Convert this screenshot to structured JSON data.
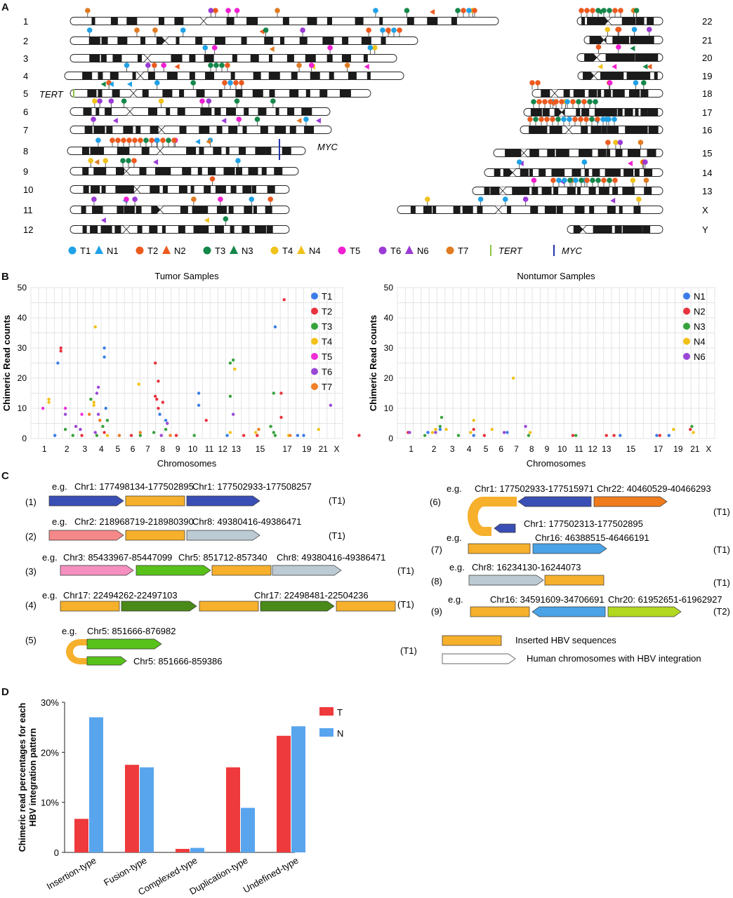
{
  "panels": {
    "a": "A",
    "b": "B",
    "c": "C",
    "d": "D"
  },
  "karyogram": {
    "left_chromosomes": [
      "1",
      "2",
      "3",
      "4",
      "5",
      "6",
      "7",
      "8",
      "9",
      "10",
      "11",
      "12"
    ],
    "right_chromosomes": [
      "22",
      "21",
      "20",
      "19",
      "18",
      "17",
      "16",
      "15",
      "14",
      "13",
      "X",
      "Y"
    ],
    "gene_labels": {
      "tert": "TERT",
      "myc": "MYC"
    },
    "legend": [
      {
        "kind": "pin",
        "color": "#1ea1e6",
        "label": "T1"
      },
      {
        "kind": "tri",
        "color": "#1ea1e6",
        "label": "N1"
      },
      {
        "kind": "pin",
        "color": "#ec5a1e",
        "label": "T2"
      },
      {
        "kind": "tri",
        "color": "#ec5a1e",
        "label": "N2"
      },
      {
        "kind": "pin",
        "color": "#14874a",
        "label": "T3"
      },
      {
        "kind": "tri",
        "color": "#14874a",
        "label": "N3"
      },
      {
        "kind": "pin",
        "color": "#f0c21c",
        "label": "T4"
      },
      {
        "kind": "tri",
        "color": "#f0c21c",
        "label": "N4"
      },
      {
        "kind": "pin",
        "color": "#f01fd2",
        "label": "T5"
      },
      {
        "kind": "pin",
        "color": "#9b3ad6",
        "label": "T6"
      },
      {
        "kind": "tri",
        "color": "#9b3ad6",
        "label": "N6"
      },
      {
        "kind": "pin",
        "color": "#e07b22",
        "label": "T7"
      },
      {
        "kind": "line",
        "color": "#8cc63f",
        "label": "TERT"
      },
      {
        "kind": "line",
        "color": "#2233aa",
        "label": "MYC"
      }
    ]
  },
  "chart_data": [
    {
      "type": "scatter",
      "title": "Tumor Samples",
      "xlabel": "Chromosomes",
      "ylabel": "Chimeric Read counts",
      "ylim": [
        0,
        50
      ],
      "yticks": [
        0,
        10,
        20,
        30,
        40,
        50
      ],
      "xticks": [
        "1",
        "2",
        "3",
        "4",
        "5",
        "6",
        "7",
        "8",
        "9",
        "10",
        "11",
        "12",
        "13",
        "15",
        "17",
        "19",
        "21",
        "X"
      ],
      "grid": true,
      "legend_position": "top-right",
      "series": [
        {
          "name": "T1",
          "color": "#3a7de8",
          "points": [
            [
              1.4,
              25
            ],
            [
              4.5,
              30
            ],
            [
              4.5,
              27
            ],
            [
              4.6,
              10
            ],
            [
              8.2,
              8
            ],
            [
              8.6,
              6
            ],
            [
              10.8,
              15
            ],
            [
              10.8,
              11
            ],
            [
              15.9,
              37
            ],
            [
              17.4,
              1
            ],
            [
              1.2,
              1
            ],
            [
              5.5,
              1
            ],
            [
              12.7,
              1
            ],
            [
              17.8,
              1
            ]
          ]
        },
        {
          "name": "T2",
          "color": "#e8333f",
          "points": [
            [
              1.6,
              30
            ],
            [
              1.6,
              29
            ],
            [
              7.9,
              25
            ],
            [
              8.1,
              19
            ],
            [
              7.9,
              14
            ],
            [
              8.0,
              13
            ],
            [
              8.4,
              12
            ],
            [
              8.1,
              10
            ],
            [
              11.3,
              6
            ],
            [
              16.5,
              46
            ],
            [
              16.3,
              15
            ],
            [
              16.3,
              7
            ],
            [
              3.0,
              1
            ],
            [
              4.5,
              2
            ],
            [
              6.3,
              1
            ],
            [
              9.3,
              1
            ],
            [
              13.8,
              1
            ],
            [
              14.7,
              1
            ],
            [
              21.5,
              1
            ]
          ]
        },
        {
          "name": "T3",
          "color": "#37a33c",
          "points": [
            [
              13.1,
              26
            ],
            [
              12.9,
              25
            ],
            [
              12.9,
              14
            ],
            [
              3.6,
              13
            ],
            [
              4.7,
              6
            ],
            [
              4.4,
              4
            ],
            [
              7.8,
              2
            ],
            [
              8.6,
              3
            ],
            [
              15.8,
              15
            ],
            [
              15.6,
              4
            ],
            [
              15.8,
              2
            ],
            [
              1.9,
              3
            ],
            [
              2.4,
              1
            ],
            [
              4.0,
              1
            ],
            [
              6.9,
              1
            ],
            [
              10.5,
              1
            ],
            [
              15.9,
              1
            ]
          ]
        },
        {
          "name": "T4",
          "color": "#f2c117",
          "points": [
            [
              3.9,
              37
            ],
            [
              0.8,
              13
            ],
            [
              0.8,
              12
            ],
            [
              3.8,
              12
            ],
            [
              3.8,
              11
            ],
            [
              6.8,
              18
            ],
            [
              13.2,
              23
            ],
            [
              12.9,
              2
            ],
            [
              4.7,
              1
            ],
            [
              14.6,
              2
            ],
            [
              16.8,
              1
            ],
            [
              18.8,
              3
            ]
          ]
        },
        {
          "name": "T5",
          "color": "#f02fd6",
          "points": [
            [
              0.4,
              10
            ],
            [
              1.9,
              10
            ],
            [
              3.0,
              8
            ]
          ]
        },
        {
          "name": "T6",
          "color": "#9a47d6",
          "points": [
            [
              4.1,
              17
            ],
            [
              4.0,
              15
            ],
            [
              4.1,
              8
            ],
            [
              1.9,
              8
            ],
            [
              2.6,
              4
            ],
            [
              2.9,
              3
            ],
            [
              13.1,
              8
            ],
            [
              19.6,
              11
            ],
            [
              8.7,
              5
            ],
            [
              3.9,
              2
            ],
            [
              8.3,
              1
            ]
          ]
        },
        {
          "name": "T7",
          "color": "#f07f25",
          "points": [
            [
              3.5,
              8
            ],
            [
              4.2,
              6
            ],
            [
              5.5,
              1
            ],
            [
              6.9,
              2
            ],
            [
              8.9,
              1
            ],
            [
              14.8,
              3
            ],
            [
              16.9,
              1
            ]
          ]
        }
      ]
    },
    {
      "type": "scatter",
      "title": "Nontumor Samples",
      "xlabel": "Chromosomes",
      "ylabel": "Chimeric Read counts",
      "ylim": [
        0,
        50
      ],
      "yticks": [
        0,
        10,
        20,
        30,
        40,
        50
      ],
      "xticks": [
        "1",
        "2",
        "3",
        "4",
        "5",
        "6",
        "7",
        "8",
        "9",
        "10",
        "11",
        "12",
        "13",
        "15",
        "17",
        "19",
        "21",
        "X"
      ],
      "grid": true,
      "legend_position": "top-right",
      "series": [
        {
          "name": "N1",
          "color": "#3a7de8",
          "points": [
            [
              1.6,
              2
            ],
            [
              2.4,
              3
            ],
            [
              4.6,
              1
            ],
            [
              6.8,
              2
            ],
            [
              14.2,
              1
            ],
            [
              16.6,
              1
            ],
            [
              17.4,
              1
            ]
          ]
        },
        {
          "name": "N2",
          "color": "#e8333f",
          "points": [
            [
              0.3,
              2
            ],
            [
              4.6,
              3
            ],
            [
              5.3,
              1
            ],
            [
              11.1,
              1
            ],
            [
              13.3,
              1
            ],
            [
              13.8,
              1
            ],
            [
              16.8,
              1
            ],
            [
              18.8,
              3
            ]
          ]
        },
        {
          "name": "N3",
          "color": "#37a33c",
          "points": [
            [
              2.5,
              7
            ],
            [
              2.4,
              4
            ],
            [
              1.4,
              1
            ],
            [
              3.6,
              1
            ],
            [
              8.2,
              1
            ],
            [
              11.3,
              1
            ],
            [
              18.9,
              4
            ]
          ]
        },
        {
          "name": "N4",
          "color": "#f2c117",
          "points": [
            [
              7.2,
              20
            ],
            [
              4.6,
              6
            ],
            [
              1.9,
              2
            ],
            [
              2.1,
              3
            ],
            [
              2.8,
              3
            ],
            [
              4.4,
              2
            ],
            [
              5.8,
              3
            ],
            [
              8.3,
              2
            ],
            [
              17.7,
              3
            ],
            [
              19.0,
              2
            ]
          ]
        },
        {
          "name": "N6",
          "color": "#9a47d6",
          "points": [
            [
              0.4,
              2
            ],
            [
              8.0,
              4
            ],
            [
              2.1,
              2
            ],
            [
              6.6,
              2
            ]
          ]
        }
      ]
    },
    {
      "type": "bar",
      "xlabel": "",
      "ylabel": "Chimeric read percentages for each HBV integration pattern",
      "ylim": [
        0,
        30
      ],
      "yticks": [
        "0",
        "10%",
        "20%",
        "30%"
      ],
      "categories": [
        "Insertion-type",
        "Fusion-type",
        "Complexed-type",
        "Duplication-type",
        "Undefined-type"
      ],
      "series": [
        {
          "name": "T",
          "color": "#ee3a3c",
          "values": [
            6.7,
            17.5,
            0.7,
            17.0,
            23.3
          ]
        },
        {
          "name": "N",
          "color": "#58a5ee",
          "values": [
            27.0,
            17.0,
            0.9,
            8.9,
            25.2
          ]
        }
      ]
    }
  ],
  "patterns": {
    "legend_inserted": "Inserted HBV sequences",
    "legend_human": "Human chromosomes with HBV integration",
    "items": [
      {
        "num": "(1)",
        "eg": "e.g.",
        "labels": [
          "Chr1: 177498134-177502895",
          "Chr1: 177502933-177508257"
        ],
        "sample": "(T1)"
      },
      {
        "num": "(2)",
        "eg": "e.g.",
        "labels": [
          "Chr2: 218968719-218980390",
          "Chr8: 49380416-49386471"
        ],
        "sample": "(T1)"
      },
      {
        "num": "(3)",
        "eg": "e.g.",
        "labels": [
          "Chr3: 85433967-85447099",
          "Chr5: 851712-857340",
          "Chr8: 49380416-49386471"
        ],
        "sample": "(T1)"
      },
      {
        "num": "(4)",
        "eg": "e.g.",
        "labels": [
          "Chr17: 22494262-22497103",
          "Chr17: 22498481-22504236"
        ],
        "sample": "(T1)"
      },
      {
        "num": "(5)",
        "eg": "e.g.",
        "labels": [
          "Chr5: 851666-876982",
          "Chr5: 851666-859386"
        ],
        "sample": "(T1)"
      },
      {
        "num": "(6)",
        "eg": "e.g.",
        "labels": [
          "Chr1: 177502933-177515971",
          "Chr22: 40460529-40466293",
          "Chr1: 177502313-177502895"
        ],
        "sample": "(T1)"
      },
      {
        "num": "(7)",
        "eg": "e.g.",
        "labels": [
          "Chr16: 46388515-46466191"
        ],
        "sample": "(T1)"
      },
      {
        "num": "(8)",
        "eg": "e.g.",
        "labels": [
          "Chr8: 16234130-16244073"
        ],
        "sample": "(T1)"
      },
      {
        "num": "(9)",
        "eg": "e.g.",
        "labels": [
          "Chr16: 34591609-34706691",
          "Chr20: 61952651-61962927"
        ],
        "sample": "(T2)"
      }
    ]
  }
}
